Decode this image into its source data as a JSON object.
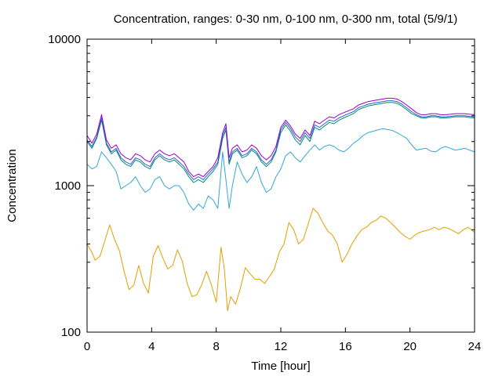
{
  "chart_data": {
    "type": "line",
    "title": "Concentration, ranges: 0-30 nm, 0-100 nm, 0-300 nm, total (5/9/1)",
    "xlabel": "Time [hour]",
    "ylabel": "Concentration",
    "xlim": [
      0,
      24
    ],
    "ylim": [
      100,
      10000
    ],
    "yscale": "log",
    "grid": false,
    "x_ticks": [
      0,
      4,
      8,
      12,
      16,
      20,
      24
    ],
    "x_tick_labels": [
      "0",
      "4",
      "8",
      "12",
      "16",
      "20",
      "24"
    ],
    "y_ticks": [
      100,
      1000,
      10000
    ],
    "y_tick_labels": [
      "100",
      "1000",
      "10000"
    ],
    "series": [
      {
        "color": "#e0a000",
        "x": [
          0,
          0.3,
          0.5,
          0.8,
          1.1,
          1.4,
          1.7,
          2.0,
          2.3,
          2.6,
          2.9,
          3.2,
          3.5,
          3.8,
          4.1,
          4.4,
          4.7,
          5.0,
          5.3,
          5.6,
          5.9,
          6.2,
          6.5,
          6.8,
          7.1,
          7.4,
          7.7,
          8.0,
          8.3,
          8.5,
          8.7,
          8.9,
          9.2,
          9.5,
          9.8,
          10.1,
          10.4,
          10.7,
          11.0,
          11.3,
          11.6,
          11.9,
          12.2,
          12.5,
          12.8,
          13.1,
          13.4,
          13.7,
          14.0,
          14.3,
          14.6,
          14.9,
          15.2,
          15.5,
          15.8,
          16.1,
          16.4,
          16.7,
          17.0,
          17.3,
          17.6,
          17.9,
          18.2,
          18.5,
          18.8,
          19.1,
          19.4,
          19.7,
          20.0,
          20.3,
          20.6,
          20.9,
          21.2,
          21.5,
          21.8,
          22.1,
          22.4,
          22.7,
          23.0,
          23.3,
          23.6,
          24.0
        ],
        "y": [
          400,
          350,
          310,
          330,
          420,
          540,
          430,
          360,
          260,
          195,
          210,
          285,
          215,
          185,
          330,
          390,
          320,
          270,
          285,
          365,
          305,
          215,
          175,
          180,
          210,
          260,
          210,
          160,
          380,
          270,
          140,
          175,
          155,
          200,
          275,
          250,
          230,
          230,
          215,
          240,
          270,
          350,
          400,
          560,
          500,
          400,
          430,
          550,
          700,
          650,
          560,
          490,
          460,
          400,
          300,
          340,
          400,
          450,
          500,
          520,
          560,
          580,
          620,
          600,
          560,
          520,
          480,
          450,
          430,
          460,
          480,
          490,
          500,
          520,
          500,
          520,
          510,
          490,
          470,
          500,
          520,
          480
        ]
      },
      {
        "color": "#30a8d8",
        "x": [
          0,
          0.3,
          0.6,
          0.9,
          1.2,
          1.5,
          1.8,
          2.1,
          2.4,
          2.7,
          3.0,
          3.3,
          3.6,
          3.9,
          4.2,
          4.5,
          4.8,
          5.1,
          5.4,
          5.7,
          6.0,
          6.3,
          6.6,
          6.9,
          7.2,
          7.5,
          7.8,
          8.1,
          8.4,
          8.6,
          8.8,
          9.0,
          9.3,
          9.6,
          9.9,
          10.2,
          10.5,
          10.8,
          11.1,
          11.4,
          11.7,
          12.0,
          12.3,
          12.6,
          12.9,
          13.2,
          13.5,
          13.8,
          14.1,
          14.4,
          14.7,
          15.0,
          15.3,
          15.6,
          15.9,
          16.2,
          16.5,
          16.8,
          17.1,
          17.4,
          17.7,
          18.0,
          18.3,
          18.6,
          18.9,
          19.2,
          19.5,
          19.8,
          20.1,
          20.4,
          20.7,
          21.0,
          21.3,
          21.6,
          21.9,
          22.2,
          22.5,
          22.8,
          23.1,
          23.4,
          23.7,
          24.0
        ],
        "y": [
          1400,
          1300,
          1350,
          1700,
          1550,
          1400,
          1250,
          950,
          1000,
          1050,
          1150,
          1000,
          900,
          950,
          1100,
          1150,
          1000,
          950,
          1000,
          1000,
          900,
          750,
          680,
          750,
          700,
          850,
          800,
          700,
          1700,
          1100,
          700,
          1000,
          1450,
          1200,
          1050,
          1150,
          1350,
          1050,
          900,
          950,
          1150,
          1300,
          1600,
          1700,
          1550,
          1450,
          1600,
          1750,
          1900,
          1750,
          1850,
          1900,
          1850,
          1750,
          1700,
          1800,
          1950,
          2050,
          2200,
          2300,
          2350,
          2400,
          2450,
          2420,
          2380,
          2300,
          2200,
          2100,
          1900,
          1750,
          1780,
          1800,
          1720,
          1700,
          1800,
          1850,
          1800,
          1750,
          1770,
          1800,
          1750,
          1700
        ]
      },
      {
        "color": "#008c78",
        "x": [
          0,
          0.3,
          0.6,
          0.9,
          1.2,
          1.5,
          1.8,
          2.1,
          2.4,
          2.7,
          3.0,
          3.3,
          3.6,
          3.9,
          4.2,
          4.5,
          4.8,
          5.1,
          5.4,
          5.7,
          6.0,
          6.3,
          6.6,
          6.9,
          7.2,
          7.5,
          7.8,
          8.1,
          8.4,
          8.6,
          8.8,
          9.0,
          9.3,
          9.6,
          9.9,
          10.2,
          10.5,
          10.8,
          11.1,
          11.4,
          11.7,
          12.0,
          12.3,
          12.6,
          12.9,
          13.2,
          13.5,
          13.8,
          14.1,
          14.4,
          14.7,
          15.0,
          15.3,
          15.6,
          15.9,
          16.2,
          16.5,
          16.8,
          17.1,
          17.4,
          17.7,
          18.0,
          18.3,
          18.6,
          18.9,
          19.2,
          19.5,
          19.8,
          20.1,
          20.4,
          20.7,
          21.0,
          21.3,
          21.6,
          21.9,
          22.2,
          22.5,
          22.8,
          23.1,
          23.4,
          23.7,
          24.0
        ],
        "y": [
          2000,
          1800,
          2100,
          2800,
          1900,
          1650,
          1750,
          1500,
          1400,
          1350,
          1500,
          1450,
          1350,
          1300,
          1500,
          1600,
          1500,
          1450,
          1500,
          1400,
          1300,
          1150,
          1050,
          1100,
          1050,
          1150,
          1250,
          1400,
          2100,
          2400,
          1400,
          1650,
          1750,
          1550,
          1600,
          1750,
          1650,
          1450,
          1350,
          1450,
          1700,
          2300,
          2600,
          2350,
          2050,
          1900,
          2200,
          2000,
          2500,
          2400,
          2550,
          2700,
          2650,
          2800,
          2900,
          3000,
          3100,
          3300,
          3400,
          3500,
          3550,
          3600,
          3650,
          3700,
          3700,
          3650,
          3500,
          3300,
          3100,
          3000,
          2900,
          2900,
          2950,
          2950,
          2900,
          2900,
          2920,
          2950,
          2950,
          2950,
          2920,
          2900
        ]
      },
      {
        "color": "#3060c8",
        "x": [
          0,
          0.3,
          0.6,
          0.9,
          1.2,
          1.5,
          1.8,
          2.1,
          2.4,
          2.7,
          3.0,
          3.3,
          3.6,
          3.9,
          4.2,
          4.5,
          4.8,
          5.1,
          5.4,
          5.7,
          6.0,
          6.3,
          6.6,
          6.9,
          7.2,
          7.5,
          7.8,
          8.1,
          8.4,
          8.6,
          8.8,
          9.0,
          9.3,
          9.6,
          9.9,
          10.2,
          10.5,
          10.8,
          11.1,
          11.4,
          11.7,
          12.0,
          12.3,
          12.6,
          12.9,
          13.2,
          13.5,
          13.8,
          14.1,
          14.4,
          14.7,
          15.0,
          15.3,
          15.6,
          15.9,
          16.2,
          16.5,
          16.8,
          17.1,
          17.4,
          17.7,
          18.0,
          18.3,
          18.6,
          18.9,
          19.2,
          19.5,
          19.8,
          20.1,
          20.4,
          20.7,
          21.0,
          21.3,
          21.6,
          21.9,
          22.2,
          22.5,
          22.8,
          23.1,
          23.4,
          23.7,
          24.0
        ],
        "y": [
          2050,
          1850,
          2150,
          2900,
          1950,
          1700,
          1800,
          1550,
          1450,
          1400,
          1550,
          1500,
          1400,
          1350,
          1550,
          1650,
          1550,
          1500,
          1550,
          1450,
          1350,
          1200,
          1100,
          1150,
          1100,
          1200,
          1300,
          1450,
          2200,
          2500,
          1450,
          1700,
          1800,
          1600,
          1650,
          1800,
          1700,
          1500,
          1400,
          1500,
          1750,
          2400,
          2700,
          2450,
          2150,
          2000,
          2300,
          2100,
          2600,
          2500,
          2650,
          2800,
          2750,
          2900,
          3000,
          3100,
          3200,
          3400,
          3500,
          3600,
          3650,
          3700,
          3750,
          3800,
          3800,
          3750,
          3600,
          3400,
          3200,
          3050,
          2950,
          2950,
          3000,
          3000,
          2950,
          2950,
          2970,
          3000,
          3000,
          3000,
          2970,
          2950
        ]
      },
      {
        "color": "#9400d3",
        "x": [
          0,
          0.3,
          0.6,
          0.9,
          1.2,
          1.5,
          1.8,
          2.1,
          2.4,
          2.7,
          3.0,
          3.3,
          3.6,
          3.9,
          4.2,
          4.5,
          4.8,
          5.1,
          5.4,
          5.7,
          6.0,
          6.3,
          6.6,
          6.9,
          7.2,
          7.5,
          7.8,
          8.1,
          8.4,
          8.6,
          8.8,
          9.0,
          9.3,
          9.6,
          9.9,
          10.2,
          10.5,
          10.8,
          11.1,
          11.4,
          11.7,
          12.0,
          12.3,
          12.6,
          12.9,
          13.2,
          13.5,
          13.8,
          14.1,
          14.4,
          14.7,
          15.0,
          15.3,
          15.6,
          15.9,
          16.2,
          16.5,
          16.8,
          17.1,
          17.4,
          17.7,
          18.0,
          18.3,
          18.6,
          18.9,
          19.2,
          19.5,
          19.8,
          20.1,
          20.4,
          20.7,
          21.0,
          21.3,
          21.6,
          21.9,
          22.2,
          22.5,
          22.8,
          23.1,
          23.4,
          23.7,
          24.0
        ],
        "y": [
          2200,
          1950,
          2250,
          3050,
          2050,
          1800,
          1900,
          1650,
          1550,
          1500,
          1650,
          1600,
          1500,
          1450,
          1650,
          1750,
          1650,
          1600,
          1650,
          1550,
          1450,
          1250,
          1150,
          1200,
          1150,
          1250,
          1350,
          1550,
          2300,
          2650,
          1550,
          1800,
          1900,
          1700,
          1750,
          1900,
          1800,
          1600,
          1500,
          1600,
          1850,
          2500,
          2800,
          2550,
          2250,
          2100,
          2400,
          2200,
          2750,
          2650,
          2800,
          2950,
          2900,
          3050,
          3150,
          3250,
          3350,
          3550,
          3650,
          3750,
          3800,
          3850,
          3900,
          3950,
          3950,
          3900,
          3750,
          3550,
          3350,
          3150,
          3050,
          3050,
          3100,
          3100,
          3050,
          3050,
          3070,
          3100,
          3100,
          3100,
          3070,
          3050
        ]
      }
    ]
  }
}
